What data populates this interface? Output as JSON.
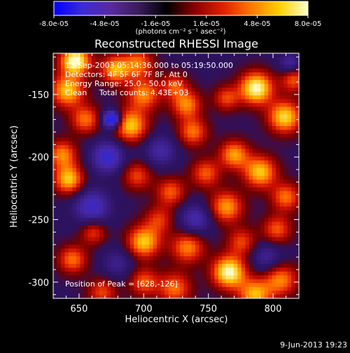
{
  "chart_data": {
    "type": "heatmap",
    "title": "Reconstructed RHESSI Image",
    "xlabel": "Heliocentric X (arcsec)",
    "ylabel": "Heliocentric Y (arcsec)",
    "xlim": [
      630,
      820
    ],
    "ylim": [
      -313,
      -117
    ],
    "x_ticks": [
      650,
      700,
      750,
      800
    ],
    "x_tick_labels": [
      "650",
      "700",
      "750",
      "800"
    ],
    "y_ticks": [
      -150,
      -200,
      -250,
      -300
    ],
    "y_tick_labels": [
      "-150",
      "-200",
      "-250",
      "-300"
    ],
    "colorbar": {
      "range": [
        -8e-05,
        8e-05
      ],
      "tick_labels": [
        "-8.0e-05",
        "-4.8e-05",
        "-1.6e-05",
        "1.6e-05",
        "4.8e-05",
        "8.0e-05"
      ],
      "units_text": "(photons cm⁻² s⁻¹ asec⁻²)",
      "colors": [
        "#0000ff",
        "#3b2bd6",
        "#5a2a9e",
        "#3a1c5a",
        "#000000",
        "#8b0000",
        "#e02000",
        "#ff7a00",
        "#ffd000",
        "#ffffd0"
      ]
    },
    "annotations": [
      "13-Sep-2003 05:14:36.000 to 05:19:50.000",
      "Detectors: 4F 5F 6F 7F 8F, Att 0",
      "Energy Range: 25.0 - 50.0 keV",
      "Clean     Total counts: 4.43E+03"
    ],
    "peak_label": "Position of Peak = [628,-126]",
    "grid": false,
    "emission_blobs": [
      {
        "x": 647,
        "y": -123,
        "value": 1.0,
        "s": 8
      },
      {
        "x": 641,
        "y": -147,
        "value": 0.75,
        "s": 9
      },
      {
        "x": 678,
        "y": -130,
        "value": 0.7,
        "s": 8
      },
      {
        "x": 696,
        "y": -125,
        "value": 0.55,
        "s": 8
      },
      {
        "x": 700,
        "y": -150,
        "value": 0.6,
        "s": 9
      },
      {
        "x": 724,
        "y": -143,
        "value": 0.45,
        "s": 7
      },
      {
        "x": 655,
        "y": -170,
        "value": 0.55,
        "s": 8
      },
      {
        "x": 690,
        "y": -175,
        "value": 0.75,
        "s": 9
      },
      {
        "x": 733,
        "y": -158,
        "value": 0.6,
        "s": 8
      },
      {
        "x": 738,
        "y": -180,
        "value": 0.55,
        "s": 8
      },
      {
        "x": 764,
        "y": -153,
        "value": 0.45,
        "s": 7
      },
      {
        "x": 787,
        "y": -145,
        "value": 0.95,
        "s": 9
      },
      {
        "x": 809,
        "y": -168,
        "value": 0.8,
        "s": 9
      },
      {
        "x": 816,
        "y": -138,
        "value": 0.5,
        "s": 7
      },
      {
        "x": 770,
        "y": -198,
        "value": 0.65,
        "s": 8
      },
      {
        "x": 637,
        "y": -198,
        "value": 0.6,
        "s": 8
      },
      {
        "x": 642,
        "y": -218,
        "value": 0.75,
        "s": 8
      },
      {
        "x": 695,
        "y": -215,
        "value": 0.45,
        "s": 8
      },
      {
        "x": 721,
        "y": -228,
        "value": 0.5,
        "s": 8
      },
      {
        "x": 748,
        "y": -213,
        "value": 0.5,
        "s": 8
      },
      {
        "x": 790,
        "y": -212,
        "value": 0.75,
        "s": 9
      },
      {
        "x": 810,
        "y": -232,
        "value": 0.55,
        "s": 8
      },
      {
        "x": 764,
        "y": -240,
        "value": 0.65,
        "s": 9
      },
      {
        "x": 712,
        "y": -250,
        "value": 0.4,
        "s": 8
      },
      {
        "x": 700,
        "y": -268,
        "value": 0.75,
        "s": 9
      },
      {
        "x": 734,
        "y": -272,
        "value": 0.6,
        "s": 9
      },
      {
        "x": 776,
        "y": -268,
        "value": 0.45,
        "s": 8
      },
      {
        "x": 803,
        "y": -258,
        "value": 0.5,
        "s": 8
      },
      {
        "x": 661,
        "y": -260,
        "value": 0.45,
        "s": 7
      },
      {
        "x": 645,
        "y": -282,
        "value": 0.55,
        "s": 8
      },
      {
        "x": 766,
        "y": -292,
        "value": 0.95,
        "s": 9
      },
      {
        "x": 806,
        "y": -298,
        "value": 0.6,
        "s": 9
      },
      {
        "x": 786,
        "y": -310,
        "value": 0.7,
        "s": 9
      },
      {
        "x": 724,
        "y": -305,
        "value": 0.55,
        "s": 9
      },
      {
        "x": 700,
        "y": -300,
        "value": 0.5,
        "s": 8
      },
      {
        "x": 668,
        "y": -308,
        "value": 0.45,
        "s": 8
      },
      {
        "x": 675,
        "y": -170,
        "value": -1.0,
        "s": 5
      },
      {
        "x": 672,
        "y": -200,
        "value": -0.6,
        "s": 9
      },
      {
        "x": 660,
        "y": -240,
        "value": -0.55,
        "s": 10
      },
      {
        "x": 713,
        "y": -195,
        "value": -0.4,
        "s": 9
      },
      {
        "x": 740,
        "y": -250,
        "value": -0.45,
        "s": 9
      },
      {
        "x": 813,
        "y": -125,
        "value": -0.4,
        "s": 6
      },
      {
        "x": 795,
        "y": -280,
        "value": -0.35,
        "s": 9
      },
      {
        "x": 680,
        "y": -285,
        "value": -0.3,
        "s": 9
      }
    ]
  },
  "footer": {
    "date": "9-Jun-2013 19:23"
  }
}
